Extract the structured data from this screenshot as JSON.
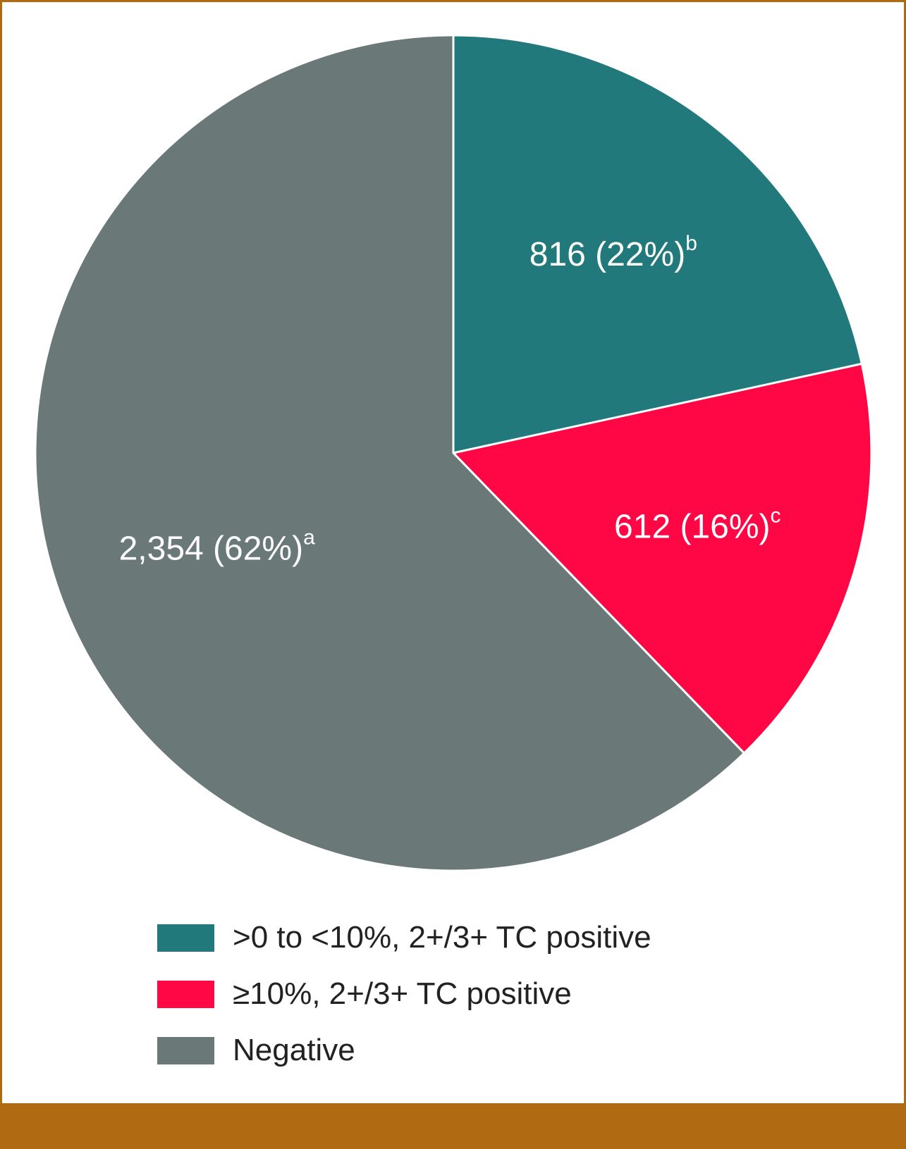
{
  "chart_data": {
    "type": "pie",
    "start_angle_deg": 0,
    "direction": "clockwise",
    "slices": [
      {
        "legend": ">0 to <10%, 2+/3+ TC positive",
        "count": 816,
        "percent": 22,
        "count_text": "816",
        "pct_text": "(22%)",
        "footnote": "b",
        "color": "#22797b"
      },
      {
        "legend": "≥10%, 2+/3+ TC positive",
        "count": 612,
        "percent": 16,
        "count_text": "612",
        "pct_text": "(16%)",
        "footnote": "c",
        "color": "#ff0745"
      },
      {
        "legend": "Negative",
        "count": 2354,
        "percent": 62,
        "count_text": "2,354",
        "pct_text": "(62%)",
        "footnote": "a",
        "color": "#6a7878"
      }
    ]
  },
  "style": {
    "frame_color": "#b06a12",
    "slice_border_color": "#ffffff",
    "label_color": "#ffffff"
  }
}
